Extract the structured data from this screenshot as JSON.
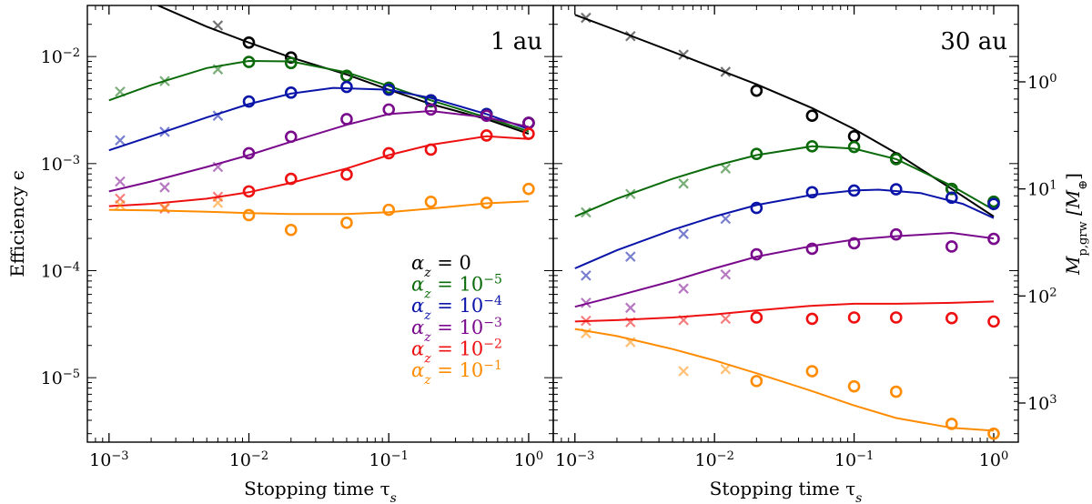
{
  "chart_data": {
    "type": "scatter",
    "x_scale": "log",
    "y_scale": "log",
    "xlim": [
      0.0007,
      1.5
    ],
    "ylim": [
      2.5e-06,
      0.03
    ],
    "ylabel": "Efficiency ϵ",
    "xlabel": "Stopping time τ",
    "xlabel_sub": "s",
    "y_ticks": [
      {
        "value": 0.01,
        "base": "10",
        "exp": "−2"
      },
      {
        "value": 0.001,
        "base": "10",
        "exp": "−3"
      },
      {
        "value": 0.0001,
        "base": "10",
        "exp": "−4"
      },
      {
        "value": 1e-05,
        "base": "10",
        "exp": "−5"
      }
    ],
    "x_ticks": [
      {
        "value": 0.001,
        "base": "10",
        "exp": "−3"
      },
      {
        "value": 0.01,
        "base": "10",
        "exp": "−2"
      },
      {
        "value": 0.1,
        "base": "10",
        "exp": "−1"
      },
      {
        "value": 1,
        "base": "10",
        "exp": "0"
      }
    ],
    "right_axis": {
      "label_main": "M",
      "label_sub": "p,grw",
      "label_unit": "[M",
      "label_unit_sub": "⊕",
      "label_close": "]",
      "ticks": [
        {
          "eps": 0.0058,
          "base": "10",
          "exp": "0"
        },
        {
          "eps": 0.00058,
          "base": "10",
          "exp": "1"
        },
        {
          "eps": 5.8e-05,
          "base": "10",
          "exp": "2"
        },
        {
          "eps": 5.8e-06,
          "base": "10",
          "exp": "3"
        }
      ]
    },
    "legend": [
      {
        "prefix": "α",
        "sub": "z",
        "text": " = 0",
        "base": "",
        "exp": "",
        "color": "#000000"
      },
      {
        "prefix": "α",
        "sub": "z",
        "text": " = ",
        "base": "10",
        "exp": "−5",
        "color": "#0b6b0b"
      },
      {
        "prefix": "α",
        "sub": "z",
        "text": " = ",
        "base": "10",
        "exp": "−4",
        "color": "#0a14a8"
      },
      {
        "prefix": "α",
        "sub": "z",
        "text": " = ",
        "base": "10",
        "exp": "−3",
        "color": "#7a0a8c"
      },
      {
        "prefix": "α",
        "sub": "z",
        "text": " = ",
        "base": "10",
        "exp": "−2",
        "color": "#ee1010"
      },
      {
        "prefix": "α",
        "sub": "z",
        "text": " = ",
        "base": "10",
        "exp": "−1",
        "color": "#ff8c00"
      }
    ],
    "panels": [
      {
        "title": "1 au",
        "series": [
          {
            "name": "αz = 0",
            "color": "#000000",
            "curve_x": [
              0.002,
              0.005,
              0.01,
              0.02,
              0.05,
              0.1,
              0.2,
              0.5,
              1.0
            ],
            "curve_y": [
              0.032,
              0.019,
              0.0135,
              0.0098,
              0.0068,
              0.0049,
              0.0036,
              0.0026,
              0.0019
            ],
            "points_x": [
              0.006,
              0.01,
              0.02,
              0.05,
              0.1,
              0.2,
              0.5,
              1.0
            ],
            "points_y": [
              0.0195,
              0.0135,
              0.0098,
              0.0066,
              0.0051,
              0.0039,
              0.0029,
              0.0024
            ],
            "markers": [
              "x",
              "o",
              "o",
              "o",
              "o",
              "o",
              "o",
              "o"
            ]
          },
          {
            "name": "αz = 10^-5",
            "color": "#0b6b0b",
            "curve_x": [
              0.001,
              0.002,
              0.005,
              0.01,
              0.02,
              0.05,
              0.1,
              0.2,
              0.5,
              1.0
            ],
            "curve_y": [
              0.0039,
              0.0054,
              0.0078,
              0.0091,
              0.009,
              0.0071,
              0.0053,
              0.0039,
              0.0027,
              0.002
            ],
            "points_x": [
              0.0012,
              0.0025,
              0.006,
              0.01,
              0.02,
              0.05,
              0.1,
              0.2,
              0.5,
              1.0
            ],
            "points_y": [
              0.0047,
              0.0059,
              0.0076,
              0.0089,
              0.0087,
              0.0066,
              0.0051,
              0.0038,
              0.0029,
              0.0024
            ],
            "markers": [
              "x",
              "x",
              "x",
              "o",
              "o",
              "o",
              "o",
              "o",
              "o",
              "o"
            ]
          },
          {
            "name": "αz = 10^-4",
            "color": "#0a14a8",
            "curve_x": [
              0.001,
              0.002,
              0.005,
              0.01,
              0.02,
              0.04,
              0.1,
              0.2,
              0.5,
              1.0
            ],
            "curve_y": [
              0.00133,
              0.0018,
              0.0027,
              0.0036,
              0.0045,
              0.0051,
              0.0049,
              0.0041,
              0.0029,
              0.0021
            ],
            "points_x": [
              0.0012,
              0.0025,
              0.006,
              0.01,
              0.02,
              0.05,
              0.1,
              0.2,
              0.5,
              1.0
            ],
            "points_y": [
              0.00165,
              0.00198,
              0.0028,
              0.0038,
              0.0046,
              0.0052,
              0.0049,
              0.0039,
              0.0029,
              0.0024
            ],
            "markers": [
              "x",
              "x",
              "x",
              "o",
              "o",
              "o",
              "o",
              "o",
              "o",
              "o"
            ]
          },
          {
            "name": "αz = 10^-3",
            "color": "#7a0a8c",
            "curve_x": [
              0.001,
              0.002,
              0.005,
              0.01,
              0.02,
              0.05,
              0.1,
              0.2,
              0.5,
              1.0
            ],
            "curve_y": [
              0.00055,
              0.00068,
              0.00093,
              0.0012,
              0.0016,
              0.0023,
              0.0029,
              0.0031,
              0.0027,
              0.0022
            ],
            "points_x": [
              0.0012,
              0.0025,
              0.006,
              0.01,
              0.02,
              0.05,
              0.1,
              0.2,
              0.5,
              1.0
            ],
            "points_y": [
              0.00068,
              0.0006,
              0.00093,
              0.00125,
              0.00178,
              0.0026,
              0.0032,
              0.0032,
              0.0028,
              0.0024
            ],
            "markers": [
              "x",
              "x",
              "x",
              "o",
              "o",
              "o",
              "o",
              "o",
              "o",
              "o"
            ]
          },
          {
            "name": "αz = 10^-2",
            "color": "#ee1010",
            "curve_x": [
              0.001,
              0.002,
              0.005,
              0.01,
              0.02,
              0.05,
              0.1,
              0.2,
              0.5,
              1.0
            ],
            "curve_y": [
              0.0004,
              0.00042,
              0.00047,
              0.00054,
              0.00066,
              0.0009,
              0.0012,
              0.0015,
              0.0018,
              0.0017
            ],
            "points_x": [
              0.0012,
              0.0025,
              0.006,
              0.01,
              0.02,
              0.05,
              0.1,
              0.2,
              0.5,
              1.0
            ],
            "points_y": [
              0.00047,
              0.00038,
              0.00049,
              0.00055,
              0.00072,
              0.00079,
              0.00125,
              0.00135,
              0.00183,
              0.0019
            ],
            "markers": [
              "x",
              "x",
              "x",
              "o",
              "o",
              "o",
              "o",
              "o",
              "o",
              "o"
            ]
          },
          {
            "name": "αz = 10^-1",
            "color": "#ff8c00",
            "curve_x": [
              0.001,
              0.002,
              0.005,
              0.01,
              0.02,
              0.05,
              0.1,
              0.2,
              0.5,
              1.0
            ],
            "curve_y": [
              0.00037,
              0.000365,
              0.000355,
              0.000345,
              0.000338,
              0.000338,
              0.000352,
              0.00038,
              0.000425,
              0.000445
            ],
            "points_x": [
              0.0012,
              0.0025,
              0.006,
              0.01,
              0.02,
              0.05,
              0.1,
              0.2,
              0.5,
              1.0
            ],
            "points_y": [
              0.00041,
              0.00039,
              0.00043,
              0.00033,
              0.00024,
              0.00028,
              0.00037,
              0.00044,
              0.00043,
              0.00058
            ],
            "markers": [
              "x",
              "x",
              "x",
              "o",
              "o",
              "o",
              "o",
              "o",
              "o",
              "o"
            ]
          }
        ]
      },
      {
        "title": "30 au",
        "series": [
          {
            "name": "αz = 0",
            "color": "#000000",
            "curve_x": [
              0.001,
              0.002,
              0.005,
              0.01,
              0.02,
              0.05,
              0.1,
              0.2,
              0.5,
              1.0
            ],
            "curve_y": [
              0.0245,
              0.0175,
              0.0111,
              0.0078,
              0.0055,
              0.0033,
              0.0021,
              0.00125,
              0.00058,
              0.00032
            ],
            "points_x": [
              0.0012,
              0.0025,
              0.006,
              0.012,
              0.02,
              0.05,
              0.1,
              0.2,
              0.5,
              1.0
            ],
            "points_y": [
              0.023,
              0.0155,
              0.0104,
              0.0072,
              0.0048,
              0.0028,
              0.0018,
              0.00112,
              0.00058,
              0.00044
            ],
            "markers": [
              "x",
              "x",
              "x",
              "x",
              "o",
              "o",
              "o",
              "o",
              "o",
              "o"
            ]
          },
          {
            "name": "αz = 10^-5",
            "color": "#0b6b0b",
            "curve_x": [
              0.001,
              0.002,
              0.005,
              0.01,
              0.02,
              0.05,
              0.1,
              0.2,
              0.5,
              1.0
            ],
            "curve_y": [
              0.00032,
              0.00047,
              0.00072,
              0.00095,
              0.0012,
              0.00145,
              0.00138,
              0.0011,
              0.00062,
              0.00037
            ],
            "points_x": [
              0.0012,
              0.0025,
              0.006,
              0.012,
              0.02,
              0.05,
              0.1,
              0.2,
              0.5,
              1.0
            ],
            "points_y": [
              0.00035,
              0.00052,
              0.00065,
              0.0009,
              0.00123,
              0.00145,
              0.00143,
              0.0011,
              0.00058,
              0.00044
            ],
            "markers": [
              "x",
              "x",
              "x",
              "x",
              "o",
              "o",
              "o",
              "o",
              "o",
              "o"
            ]
          },
          {
            "name": "αz = 10^-4",
            "color": "#0a14a8",
            "curve_x": [
              0.001,
              0.002,
              0.005,
              0.01,
              0.02,
              0.05,
              0.1,
              0.15,
              0.3,
              0.6,
              1.0
            ],
            "curve_y": [
              0.000105,
              0.000155,
              0.00024,
              0.00032,
              0.00041,
              0.00051,
              0.00056,
              0.00057,
              0.00053,
              0.00042,
              0.00031
            ],
            "points_x": [
              0.0012,
              0.0025,
              0.006,
              0.012,
              0.02,
              0.05,
              0.1,
              0.2,
              0.5,
              1.0
            ],
            "points_y": [
              9e-05,
              0.000135,
              0.00022,
              0.000305,
              0.000385,
              0.00054,
              0.00056,
              0.000575,
              0.00048,
              0.00042
            ],
            "markers": [
              "x",
              "x",
              "x",
              "x",
              "o",
              "o",
              "o",
              "o",
              "o",
              "o"
            ]
          },
          {
            "name": "αz = 10^-3",
            "color": "#7a0a8c",
            "curve_x": [
              0.001,
              0.002,
              0.005,
              0.01,
              0.02,
              0.05,
              0.1,
              0.2,
              0.5,
              1.0
            ],
            "curve_y": [
              4.6e-05,
              5.8e-05,
              8e-05,
              0.000105,
              0.000135,
              0.00017,
              0.000195,
              0.00021,
              0.000225,
              0.0002
            ],
            "points_x": [
              0.0012,
              0.0025,
              0.006,
              0.012,
              0.02,
              0.05,
              0.1,
              0.2,
              0.5,
              1.0
            ],
            "points_y": [
              5e-05,
              4.5e-05,
              6.8e-05,
              9.2e-05,
              0.000142,
              0.00016,
              0.00018,
              0.000218,
              0.000168,
              0.000198
            ],
            "markers": [
              "x",
              "x",
              "x",
              "x",
              "o",
              "o",
              "o",
              "o",
              "o",
              "o"
            ]
          },
          {
            "name": "αz = 10^-2",
            "color": "#ee1010",
            "curve_x": [
              0.001,
              0.002,
              0.005,
              0.01,
              0.02,
              0.05,
              0.1,
              0.2,
              0.5,
              1.0
            ],
            "curve_y": [
              3.35e-05,
              3.45e-05,
              3.65e-05,
              3.9e-05,
              4.25e-05,
              4.7e-05,
              4.9e-05,
              4.9e-05,
              5e-05,
              5.15e-05
            ],
            "points_x": [
              0.0012,
              0.0025,
              0.006,
              0.012,
              0.02,
              0.05,
              0.1,
              0.2,
              0.5,
              1.0
            ],
            "points_y": [
              3.4e-05,
              3.3e-05,
              3.45e-05,
              3.55e-05,
              3.65e-05,
              3.55e-05,
              3.65e-05,
              3.65e-05,
              3.6e-05,
              3.35e-05
            ],
            "markers": [
              "x",
              "x",
              "x",
              "x",
              "o",
              "o",
              "o",
              "o",
              "o",
              "o"
            ]
          },
          {
            "name": "αz = 10^-1",
            "color": "#ff8c00",
            "curve_x": [
              0.001,
              0.002,
              0.005,
              0.01,
              0.02,
              0.05,
              0.1,
              0.2,
              0.5,
              1.0
            ],
            "curve_y": [
              2.85e-05,
              2.45e-05,
              1.85e-05,
              1.45e-05,
              1.1e-05,
              7.5e-06,
              5.5e-06,
              4.2e-06,
              3.4e-06,
              3.2e-06
            ],
            "points_x": [
              0.0012,
              0.0025,
              0.006,
              0.012,
              0.02,
              0.05,
              0.1,
              0.2,
              0.5,
              1.0
            ],
            "points_y": [
              2.6e-05,
              2.15e-05,
              1.15e-05,
              1.2e-05,
              9.3e-06,
              1.15e-05,
              8.3e-06,
              7.4e-06,
              3.7e-06,
              3e-06
            ],
            "markers": [
              "x",
              "x",
              "x",
              "x",
              "o",
              "o",
              "o",
              "o",
              "o",
              "o"
            ]
          }
        ]
      }
    ]
  }
}
